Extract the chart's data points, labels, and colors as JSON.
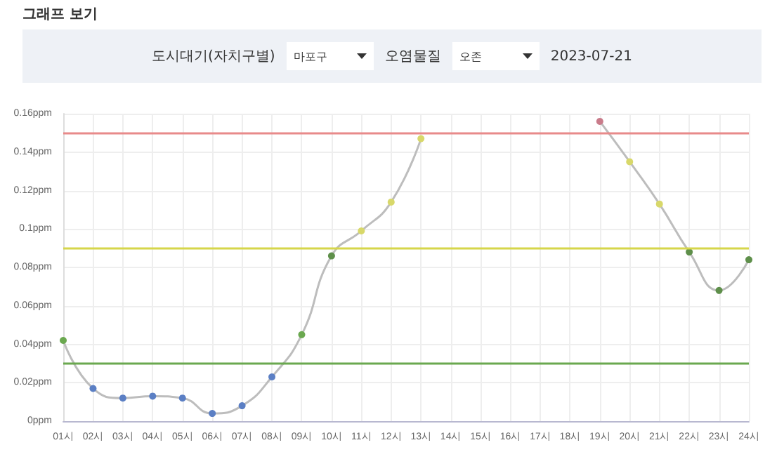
{
  "chart_data": {
    "type": "line",
    "title": "그래프 보기",
    "annotations": [
      "도시대기(자치구별)",
      "마포구",
      "오염물질",
      "오존",
      "2023-07-21"
    ],
    "categories": [
      "01시",
      "02시",
      "03시",
      "04시",
      "05시",
      "06시",
      "07시",
      "08시",
      "09시",
      "10시",
      "11시",
      "12시",
      "13시",
      "14시",
      "15시",
      "16시",
      "17시",
      "18시",
      "19시",
      "20시",
      "21시",
      "22시",
      "23시",
      "24시"
    ],
    "series": [
      {
        "color": "#bdbdbd",
        "values": [
          0.042,
          0.017,
          0.012,
          0.013,
          0.012,
          0.004,
          0.008,
          0.023,
          0.045,
          0.086,
          0.099,
          0.114,
          0.147,
          null,
          null,
          null,
          null,
          null,
          0.156,
          0.135,
          0.113,
          0.088,
          0.068,
          0.084
        ],
        "colors": [
          "#6aa84f",
          "#5b7fc4",
          "#5b7fc4",
          "#5b7fc4",
          "#5b7fc4",
          "#5b7fc4",
          "#5b7fc4",
          "#5b7fc4",
          "#6aa84f",
          "#5e8f4a",
          "#d8d86a",
          "#d8d86a",
          "#d8d86a",
          null,
          null,
          null,
          null,
          null,
          "#c97b8a",
          "#d8d86a",
          "#d8d86a",
          "#5e8f4a",
          "#5e8f4a",
          "#5e8f4a"
        ]
      }
    ],
    "ylim": [
      0,
      0.16
    ],
    "yticks": [
      {
        "value": 0,
        "label": "0ppm"
      },
      {
        "value": 0.02,
        "label": "0.02ppm"
      },
      {
        "value": 0.04,
        "label": "0.04ppm"
      },
      {
        "value": 0.06,
        "label": "0.06ppm"
      },
      {
        "value": 0.08,
        "label": "0.08ppm"
      },
      {
        "value": 0.1,
        "label": "0.1ppm"
      },
      {
        "value": 0.12,
        "label": "0.12ppm"
      },
      {
        "value": 0.14,
        "label": "0.14ppm"
      },
      {
        "value": 0.16,
        "label": "0.16ppm"
      }
    ],
    "ref_lines": [
      {
        "axis": "y",
        "value": 0.15,
        "color": "#e88a8a"
      },
      {
        "axis": "y",
        "value": 0.09,
        "color": "#d6d64a"
      },
      {
        "axis": "y",
        "value": 0.03,
        "color": "#6aa84f"
      }
    ],
    "grid": true,
    "marker": "circle",
    "line_style": "solid"
  }
}
